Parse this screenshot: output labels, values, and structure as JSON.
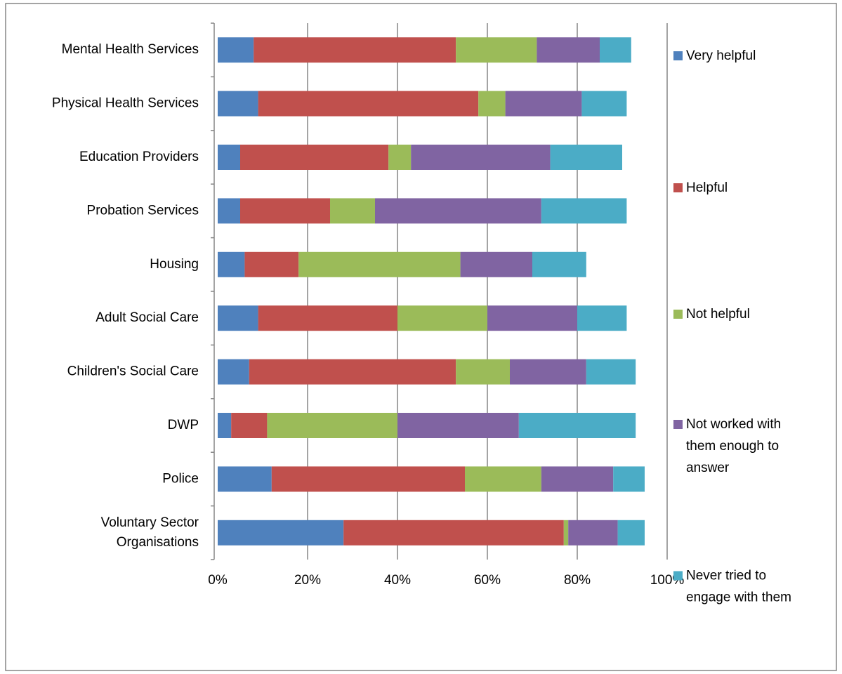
{
  "chart_data": {
    "type": "stacked-bar-horizontal",
    "categories": [
      "Mental Health Services",
      "Physical Health Services",
      "Education Providers",
      "Probation Services",
      "Housing",
      "Adult Social Care",
      "Children's Social Care",
      "DWP",
      "Police",
      "Voluntary Sector Organisations"
    ],
    "series": [
      {
        "name": "Very helpful",
        "color": "#4f81bd",
        "values": [
          8,
          9,
          5,
          5,
          6,
          9,
          7,
          3,
          12,
          28
        ]
      },
      {
        "name": "Helpful",
        "color": "#c0504d",
        "values": [
          45,
          49,
          33,
          20,
          12,
          31,
          46,
          8,
          43,
          49
        ]
      },
      {
        "name": "Not helpful",
        "color": "#9bbb59",
        "values": [
          18,
          6,
          5,
          10,
          36,
          20,
          12,
          29,
          17,
          1
        ]
      },
      {
        "name": "Not worked with them enough to answer",
        "color": "#8064a2",
        "values": [
          14,
          17,
          31,
          37,
          16,
          20,
          17,
          27,
          16,
          11
        ]
      },
      {
        "name": "Never tried to engage with them",
        "color": "#4bacc6",
        "values": [
          7,
          10,
          16,
          19,
          12,
          11,
          11,
          26,
          7,
          6
        ]
      }
    ],
    "xlim": [
      0,
      100
    ],
    "xticks": [
      {
        "value": 0,
        "label": "0%"
      },
      {
        "value": 20,
        "label": "20%"
      },
      {
        "value": 40,
        "label": "40%"
      },
      {
        "value": 60,
        "label": "60%"
      },
      {
        "value": 80,
        "label": "80%"
      },
      {
        "value": 100,
        "label": "100%"
      }
    ],
    "grid": true,
    "legend": "right"
  }
}
